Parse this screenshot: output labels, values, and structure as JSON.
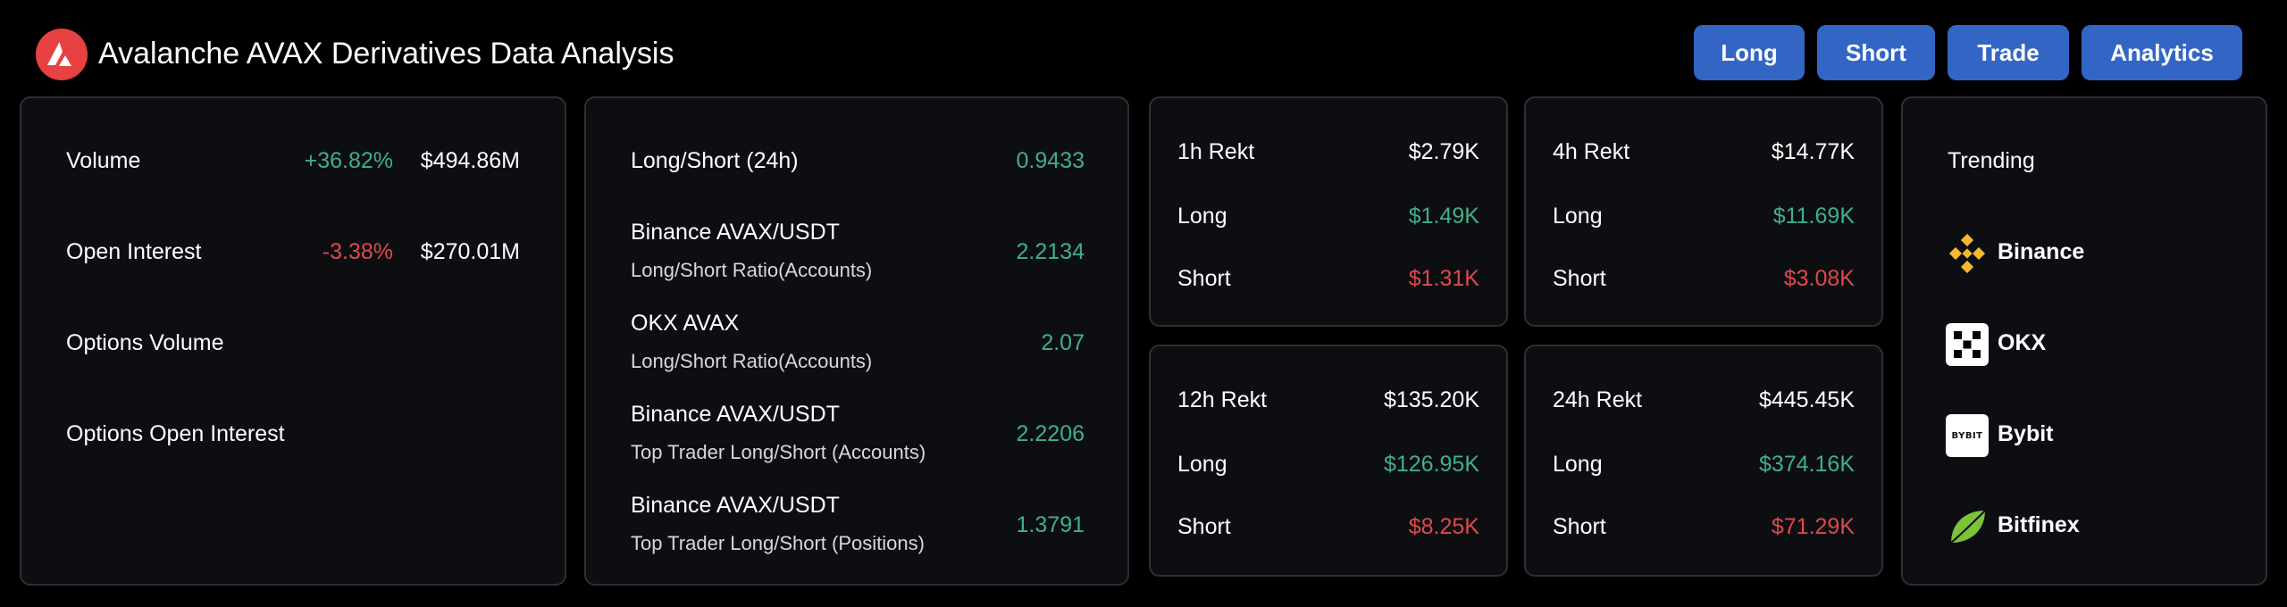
{
  "header": {
    "title": "Avalanche AVAX Derivatives Data Analysis",
    "logo_icon": "avalanche-logo-icon",
    "nav": [
      "Long",
      "Short",
      "Trade",
      "Analytics"
    ],
    "accent": "#3366c4"
  },
  "market": {
    "volume": {
      "label": "Volume",
      "change": "+36.82%",
      "value": "$494.86M"
    },
    "open_interest": {
      "label": "Open Interest",
      "change": "-3.38%",
      "value": "$270.01M"
    },
    "options_volume": {
      "label": "Options Volume"
    },
    "options_open_interest": {
      "label": "Options Open Interest"
    }
  },
  "ratios": {
    "long_short_24h": {
      "label": "Long/Short (24h)",
      "value": "0.9433"
    },
    "rows": [
      {
        "title": "Binance AVAX/USDT",
        "subtitle": "Long/Short Ratio(Accounts)",
        "value": "2.2134"
      },
      {
        "title": "OKX AVAX",
        "subtitle": "Long/Short Ratio(Accounts)",
        "value": "2.07"
      },
      {
        "title": "Binance AVAX/USDT",
        "subtitle": "Top Trader Long/Short (Accounts)",
        "value": "2.2206"
      },
      {
        "title": "Binance AVAX/USDT",
        "subtitle": "Top Trader Long/Short (Positions)",
        "value": "1.3791"
      }
    ]
  },
  "rekt": {
    "h1": {
      "label": "1h Rekt",
      "total": "$2.79K",
      "long_label": "Long",
      "long": "$1.49K",
      "short_label": "Short",
      "short": "$1.31K"
    },
    "h4": {
      "label": "4h Rekt",
      "total": "$14.77K",
      "long_label": "Long",
      "long": "$11.69K",
      "short_label": "Short",
      "short": "$3.08K"
    },
    "h12": {
      "label": "12h Rekt",
      "total": "$135.20K",
      "long_label": "Long",
      "long": "$126.95K",
      "short_label": "Short",
      "short": "$8.25K"
    },
    "h24": {
      "label": "24h Rekt",
      "total": "$445.45K",
      "long_label": "Long",
      "long": "$374.16K",
      "short_label": "Short",
      "short": "$71.29K"
    }
  },
  "trending": {
    "title": "Trending",
    "exchanges": [
      {
        "name": "Binance",
        "icon": "binance-icon"
      },
      {
        "name": "OKX",
        "icon": "okx-icon"
      },
      {
        "name": "Bybit",
        "icon": "bybit-icon",
        "icon_text": "BYBIT"
      },
      {
        "name": "Bitfinex",
        "icon": "bitfinex-icon"
      }
    ]
  },
  "colors": {
    "positive": "#3fb08a",
    "negative": "#e0484a",
    "card_bg": "#0d0e12",
    "card_border": "#2e2f34"
  }
}
